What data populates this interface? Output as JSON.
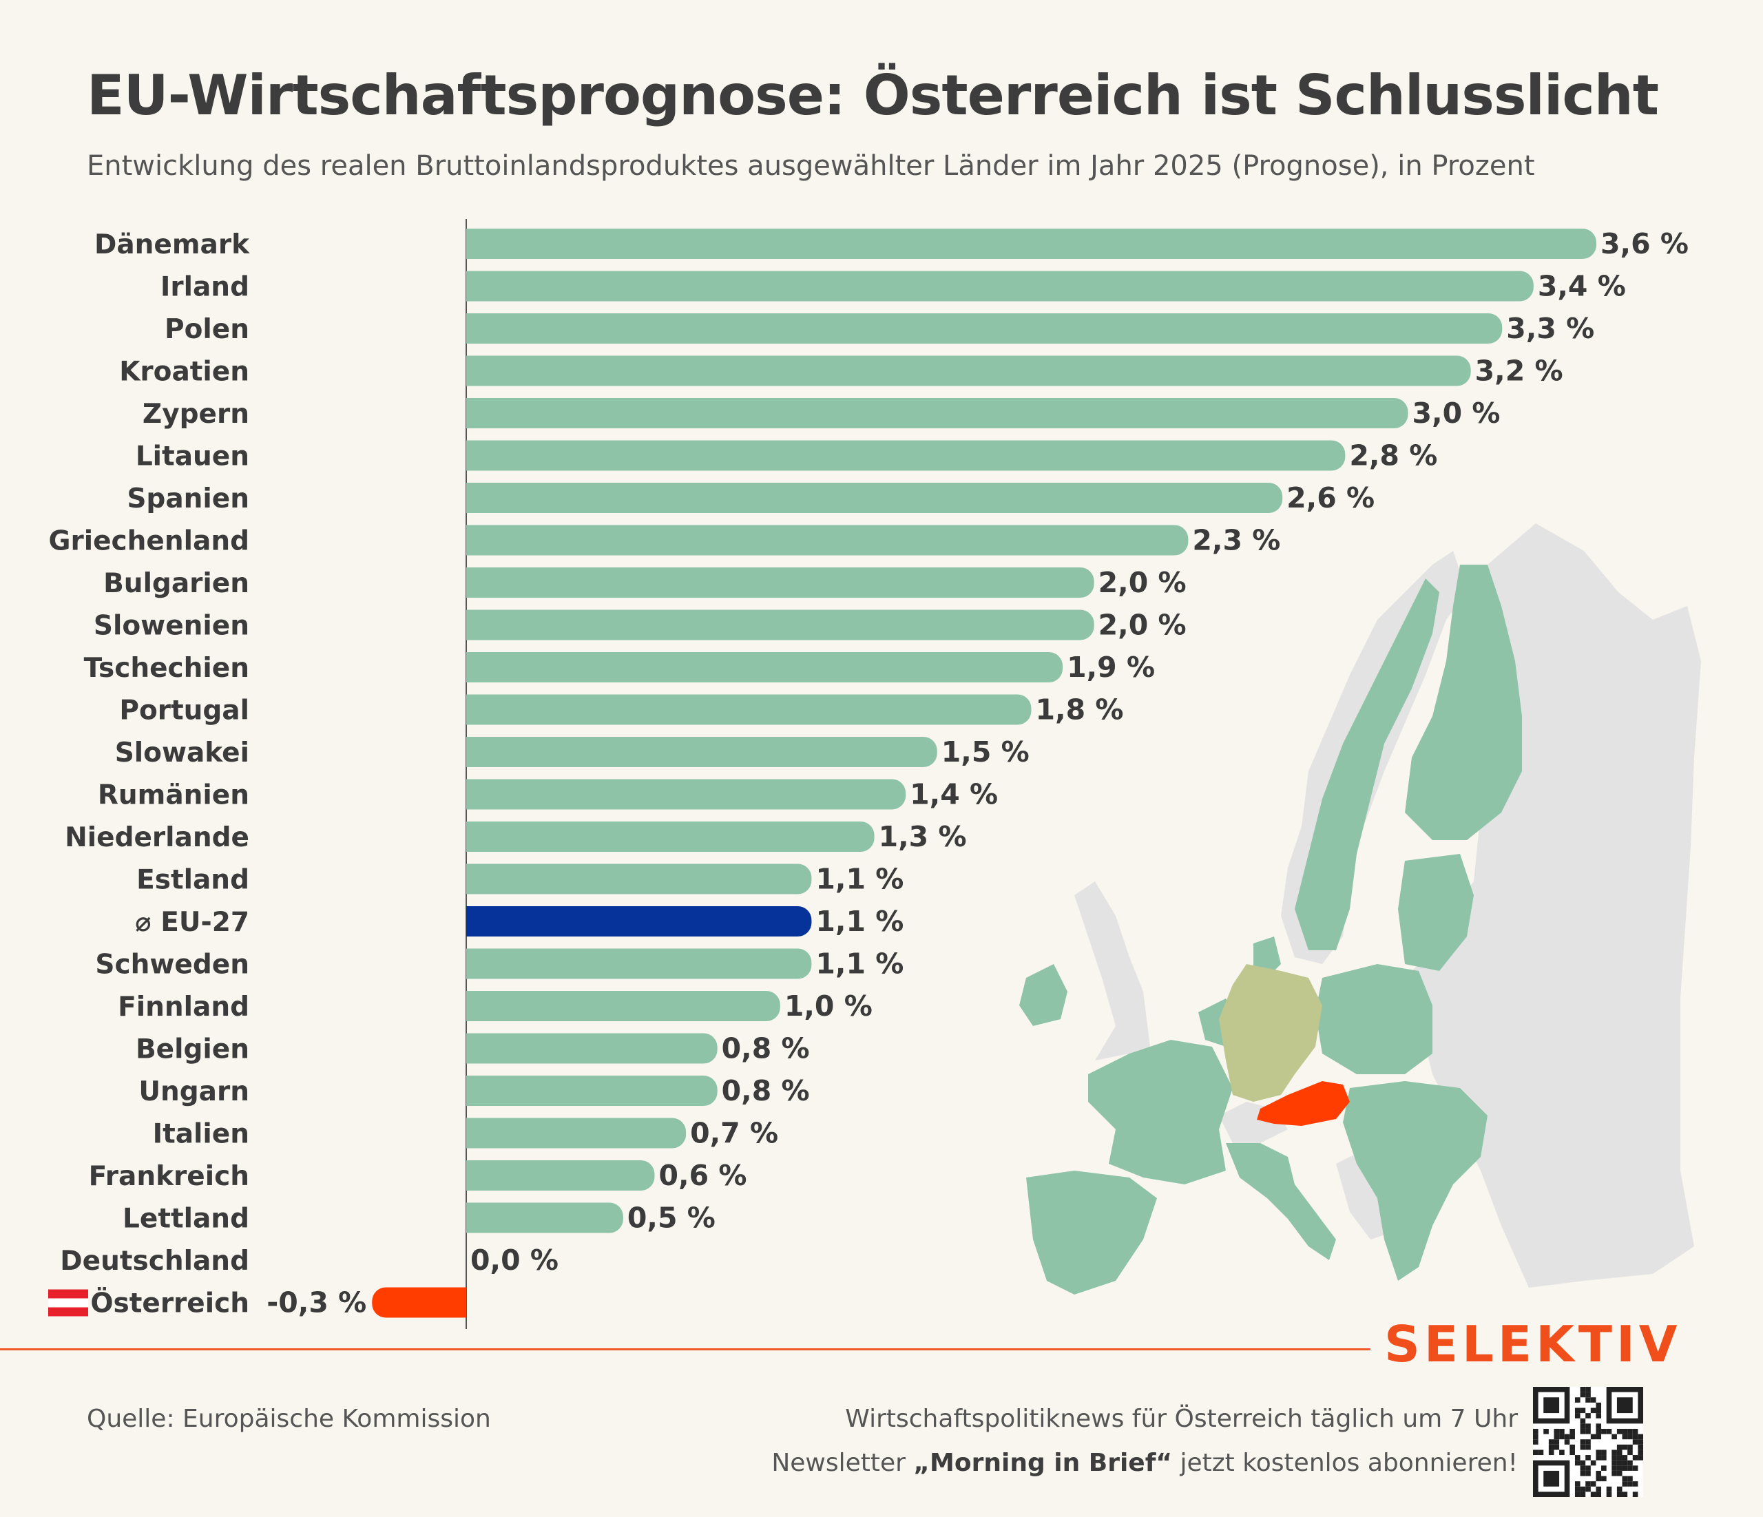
{
  "title": "EU-Wirtschaftsprognose: Österreich ist Schlusslicht",
  "subtitle": "Entwicklung des realen Bruttoinlandsproduktes ausgewählter Länder im Jahr 2025 (Prognose), in Prozent",
  "brand": "SELEKTIV",
  "source": "Quelle: Europäische Kommission",
  "promo_line1": "Wirtschaftspolitiknews für Österreich täglich um 7 Uhr",
  "promo_line2_before": "Newsletter ",
  "promo_line2_bold": "„Morning in Brief“",
  "promo_line2_after": " jetzt kostenlos abonnieren!",
  "colors": {
    "bar_default": "#8fc3a8",
    "bar_eu": "#06339a",
    "bar_austria": "#ff3d00",
    "map_eu": "#8fc3a8",
    "map_non_eu": "#e3e3e3",
    "map_germany": "#bfc78f",
    "map_austria": "#ff3d00",
    "brand": "#f04e1b"
  },
  "icons": {
    "austria_flag": "austria-flag-icon",
    "qr": "qr-code-icon",
    "map": "europe-map-illustration"
  },
  "chart_data": {
    "type": "bar",
    "orientation": "horizontal",
    "unit": "%",
    "xlim": [
      -0.3,
      3.6
    ],
    "categories": [
      "Dänemark",
      "Irland",
      "Polen",
      "Kroatien",
      "Zypern",
      "Litauen",
      "Spanien",
      "Griechenland",
      "Bulgarien",
      "Slowenien",
      "Tschechien",
      "Portugal",
      "Slowakei",
      "Rumänien",
      "Niederlande",
      "Estland",
      "⌀ EU-27",
      "Schweden",
      "Finnland",
      "Belgien",
      "Ungarn",
      "Italien",
      "Frankreich",
      "Lettland",
      "Deutschland",
      "Österreich"
    ],
    "values": [
      3.6,
      3.4,
      3.3,
      3.2,
      3.0,
      2.8,
      2.6,
      2.3,
      2.0,
      2.0,
      1.9,
      1.8,
      1.5,
      1.4,
      1.3,
      1.1,
      1.1,
      1.1,
      1.0,
      0.8,
      0.8,
      0.7,
      0.6,
      0.5,
      0.0,
      -0.3
    ],
    "value_labels": [
      "3,6 %",
      "3,4 %",
      "3,3 %",
      "3,2 %",
      "3,0 %",
      "2,8 %",
      "2,6 %",
      "2,3 %",
      "2,0 %",
      "2,0 %",
      "1,9 %",
      "1,8 %",
      "1,5 %",
      "1,4 %",
      "1,3 %",
      "1,1 %",
      "1,1 %",
      "1,1 %",
      "1,0 %",
      "0,8 %",
      "0,8 %",
      "0,7 %",
      "0,6 %",
      "0,5 %",
      "0,0 %",
      "-0,3 %"
    ],
    "highlight": {
      "⌀ EU-27": "eu",
      "Österreich": "austria"
    },
    "grid": false,
    "legend": "none"
  }
}
